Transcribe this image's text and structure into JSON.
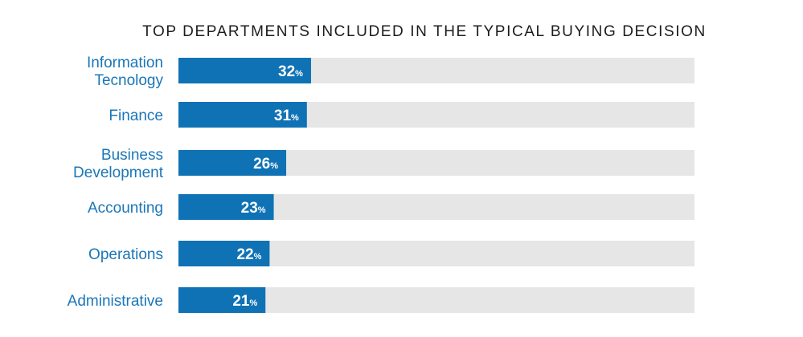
{
  "chart_data": {
    "type": "bar",
    "orientation": "horizontal",
    "title": "TOP DEPARTMENTS INCLUDED IN THE TYPICAL BUYING DECISION",
    "categories": [
      [
        "Information",
        "Tecnology"
      ],
      [
        "Finance"
      ],
      [
        "Business",
        "Development"
      ],
      [
        "Accounting"
      ],
      [
        "Operations"
      ],
      [
        "Administrative"
      ]
    ],
    "values": [
      32,
      31,
      26,
      23,
      22,
      21
    ],
    "value_suffix": "%",
    "xlim": [
      0,
      100
    ],
    "grid": false,
    "legend": "none"
  },
  "colors": {
    "bar": "#0f72b5",
    "track": "#e6e6e7",
    "category_text": "#1a76b8",
    "title_text": "#1c1c1c",
    "value_text": "#ffffff"
  }
}
